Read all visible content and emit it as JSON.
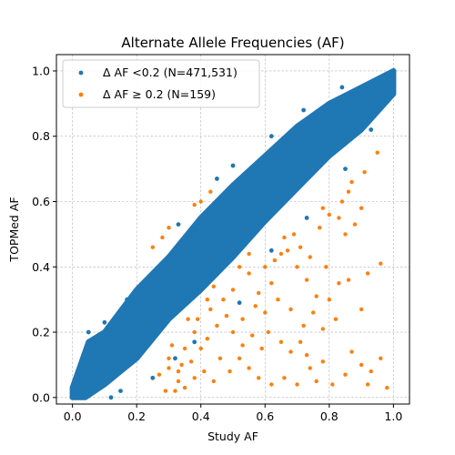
{
  "chart_data": {
    "type": "scatter",
    "title": "Alternate Allele Frequencies (AF)",
    "xlabel": "Study AF",
    "ylabel": "TOPMed AF",
    "xlim": [
      -0.05,
      1.05
    ],
    "ylim": [
      -0.02,
      1.05
    ],
    "xticks": [
      "0.0",
      "0.2",
      "0.4",
      "0.6",
      "0.8",
      "1.0"
    ],
    "yticks": [
      "0.0",
      "0.2",
      "0.4",
      "0.6",
      "0.8",
      "1.0"
    ],
    "grid": true,
    "legend_position": "upper-left",
    "series": [
      {
        "name": "Δ AF <0.2 (N=471,531)",
        "color": "#1f77b4",
        "band": {
          "upper": [
            [
              0.0,
              0.03
            ],
            [
              0.05,
              0.17
            ],
            [
              0.1,
              0.2
            ],
            [
              0.2,
              0.33
            ],
            [
              0.3,
              0.43
            ],
            [
              0.4,
              0.55
            ],
            [
              0.5,
              0.65
            ],
            [
              0.6,
              0.74
            ],
            [
              0.7,
              0.83
            ],
            [
              0.8,
              0.9
            ],
            [
              0.9,
              0.95
            ],
            [
              1.0,
              1.0
            ]
          ],
          "lower": [
            [
              1.0,
              0.93
            ],
            [
              0.9,
              0.82
            ],
            [
              0.8,
              0.74
            ],
            [
              0.7,
              0.64
            ],
            [
              0.6,
              0.54
            ],
            [
              0.5,
              0.43
            ],
            [
              0.4,
              0.33
            ],
            [
              0.3,
              0.24
            ],
            [
              0.2,
              0.12
            ],
            [
              0.1,
              0.04
            ],
            [
              0.04,
              0.0
            ],
            [
              0.0,
              0.0
            ]
          ]
        },
        "outliers": [
          [
            0.05,
            0.2
          ],
          [
            0.1,
            0.23
          ],
          [
            0.17,
            0.3
          ],
          [
            0.27,
            0.4
          ],
          [
            0.33,
            0.53
          ],
          [
            0.45,
            0.67
          ],
          [
            0.5,
            0.71
          ],
          [
            0.62,
            0.8
          ],
          [
            0.72,
            0.88
          ],
          [
            0.84,
            0.95
          ],
          [
            0.15,
            0.02
          ],
          [
            0.25,
            0.06
          ],
          [
            0.38,
            0.17
          ],
          [
            0.52,
            0.29
          ],
          [
            0.62,
            0.45
          ],
          [
            0.73,
            0.55
          ],
          [
            0.85,
            0.7
          ],
          [
            0.93,
            0.82
          ],
          [
            0.12,
            0.0
          ],
          [
            0.32,
            0.12
          ]
        ]
      },
      {
        "name": "Δ AF  ≥ 0.2 (N=159)",
        "color": "#ff7f0e",
        "points": [
          [
            0.43,
            0.63
          ],
          [
            0.4,
            0.6
          ],
          [
            0.38,
            0.59
          ],
          [
            0.3,
            0.52
          ],
          [
            0.28,
            0.49
          ],
          [
            0.25,
            0.46
          ],
          [
            0.95,
            0.75
          ],
          [
            0.91,
            0.69
          ],
          [
            0.87,
            0.66
          ],
          [
            0.86,
            0.63
          ],
          [
            0.84,
            0.6
          ],
          [
            0.8,
            0.56
          ],
          [
            0.77,
            0.52
          ],
          [
            0.78,
            0.58
          ],
          [
            0.83,
            0.55
          ],
          [
            0.85,
            0.5
          ],
          [
            0.88,
            0.53
          ],
          [
            0.9,
            0.58
          ],
          [
            0.96,
            0.41
          ],
          [
            0.92,
            0.38
          ],
          [
            0.86,
            0.36
          ],
          [
            0.83,
            0.35
          ],
          [
            0.8,
            0.3
          ],
          [
            0.76,
            0.31
          ],
          [
            0.73,
            0.36
          ],
          [
            0.7,
            0.4
          ],
          [
            0.67,
            0.45
          ],
          [
            0.69,
            0.5
          ],
          [
            0.65,
            0.44
          ],
          [
            0.63,
            0.42
          ],
          [
            0.6,
            0.4
          ],
          [
            0.62,
            0.35
          ],
          [
            0.58,
            0.32
          ],
          [
            0.55,
            0.38
          ],
          [
            0.57,
            0.28
          ],
          [
            0.6,
            0.26
          ],
          [
            0.64,
            0.3
          ],
          [
            0.68,
            0.27
          ],
          [
            0.72,
            0.22
          ],
          [
            0.75,
            0.26
          ],
          [
            0.78,
            0.21
          ],
          [
            0.82,
            0.24
          ],
          [
            0.9,
            0.27
          ],
          [
            0.96,
            0.12
          ],
          [
            0.93,
            0.08
          ],
          [
            0.9,
            0.1
          ],
          [
            0.85,
            0.07
          ],
          [
            0.81,
            0.04
          ],
          [
            0.78,
            0.11
          ],
          [
            0.74,
            0.09
          ],
          [
            0.7,
            0.04
          ],
          [
            0.66,
            0.06
          ],
          [
            0.62,
            0.04
          ],
          [
            0.58,
            0.06
          ],
          [
            0.55,
            0.09
          ],
          [
            0.52,
            0.12
          ],
          [
            0.5,
            0.2
          ],
          [
            0.48,
            0.25
          ],
          [
            0.47,
            0.3
          ],
          [
            0.5,
            0.33
          ],
          [
            0.53,
            0.24
          ],
          [
            0.45,
            0.22
          ],
          [
            0.43,
            0.27
          ],
          [
            0.42,
            0.18
          ],
          [
            0.4,
            0.15
          ],
          [
            0.38,
            0.2
          ],
          [
            0.36,
            0.24
          ],
          [
            0.35,
            0.15
          ],
          [
            0.34,
            0.1
          ],
          [
            0.33,
            0.05
          ],
          [
            0.3,
            0.09
          ],
          [
            0.29,
            0.02
          ],
          [
            0.32,
            0.02
          ],
          [
            0.35,
            0.03
          ],
          [
            0.38,
            0.06
          ],
          [
            0.41,
            0.08
          ],
          [
            0.44,
            0.05
          ],
          [
            0.46,
            0.12
          ],
          [
            0.49,
            0.08
          ],
          [
            0.53,
            0.16
          ],
          [
            0.56,
            0.19
          ],
          [
            0.59,
            0.15
          ],
          [
            0.61,
            0.2
          ],
          [
            0.65,
            0.17
          ],
          [
            0.68,
            0.14
          ],
          [
            0.71,
            0.17
          ],
          [
            0.73,
            0.13
          ],
          [
            0.76,
            0.05
          ],
          [
            0.87,
            0.14
          ],
          [
            0.92,
            0.04
          ],
          [
            0.98,
            0.03
          ],
          [
            0.3,
            0.12
          ],
          [
            0.27,
            0.07
          ],
          [
            0.37,
            0.11
          ],
          [
            0.42,
            0.3
          ],
          [
            0.44,
            0.34
          ],
          [
            0.52,
            0.4
          ],
          [
            0.55,
            0.44
          ],
          [
            0.66,
            0.49
          ],
          [
            0.71,
            0.46
          ],
          [
            0.74,
            0.43
          ],
          [
            0.79,
            0.4
          ],
          [
            0.33,
            0.08
          ],
          [
            0.31,
            0.16
          ],
          [
            0.39,
            0.24
          ]
        ]
      }
    ]
  }
}
